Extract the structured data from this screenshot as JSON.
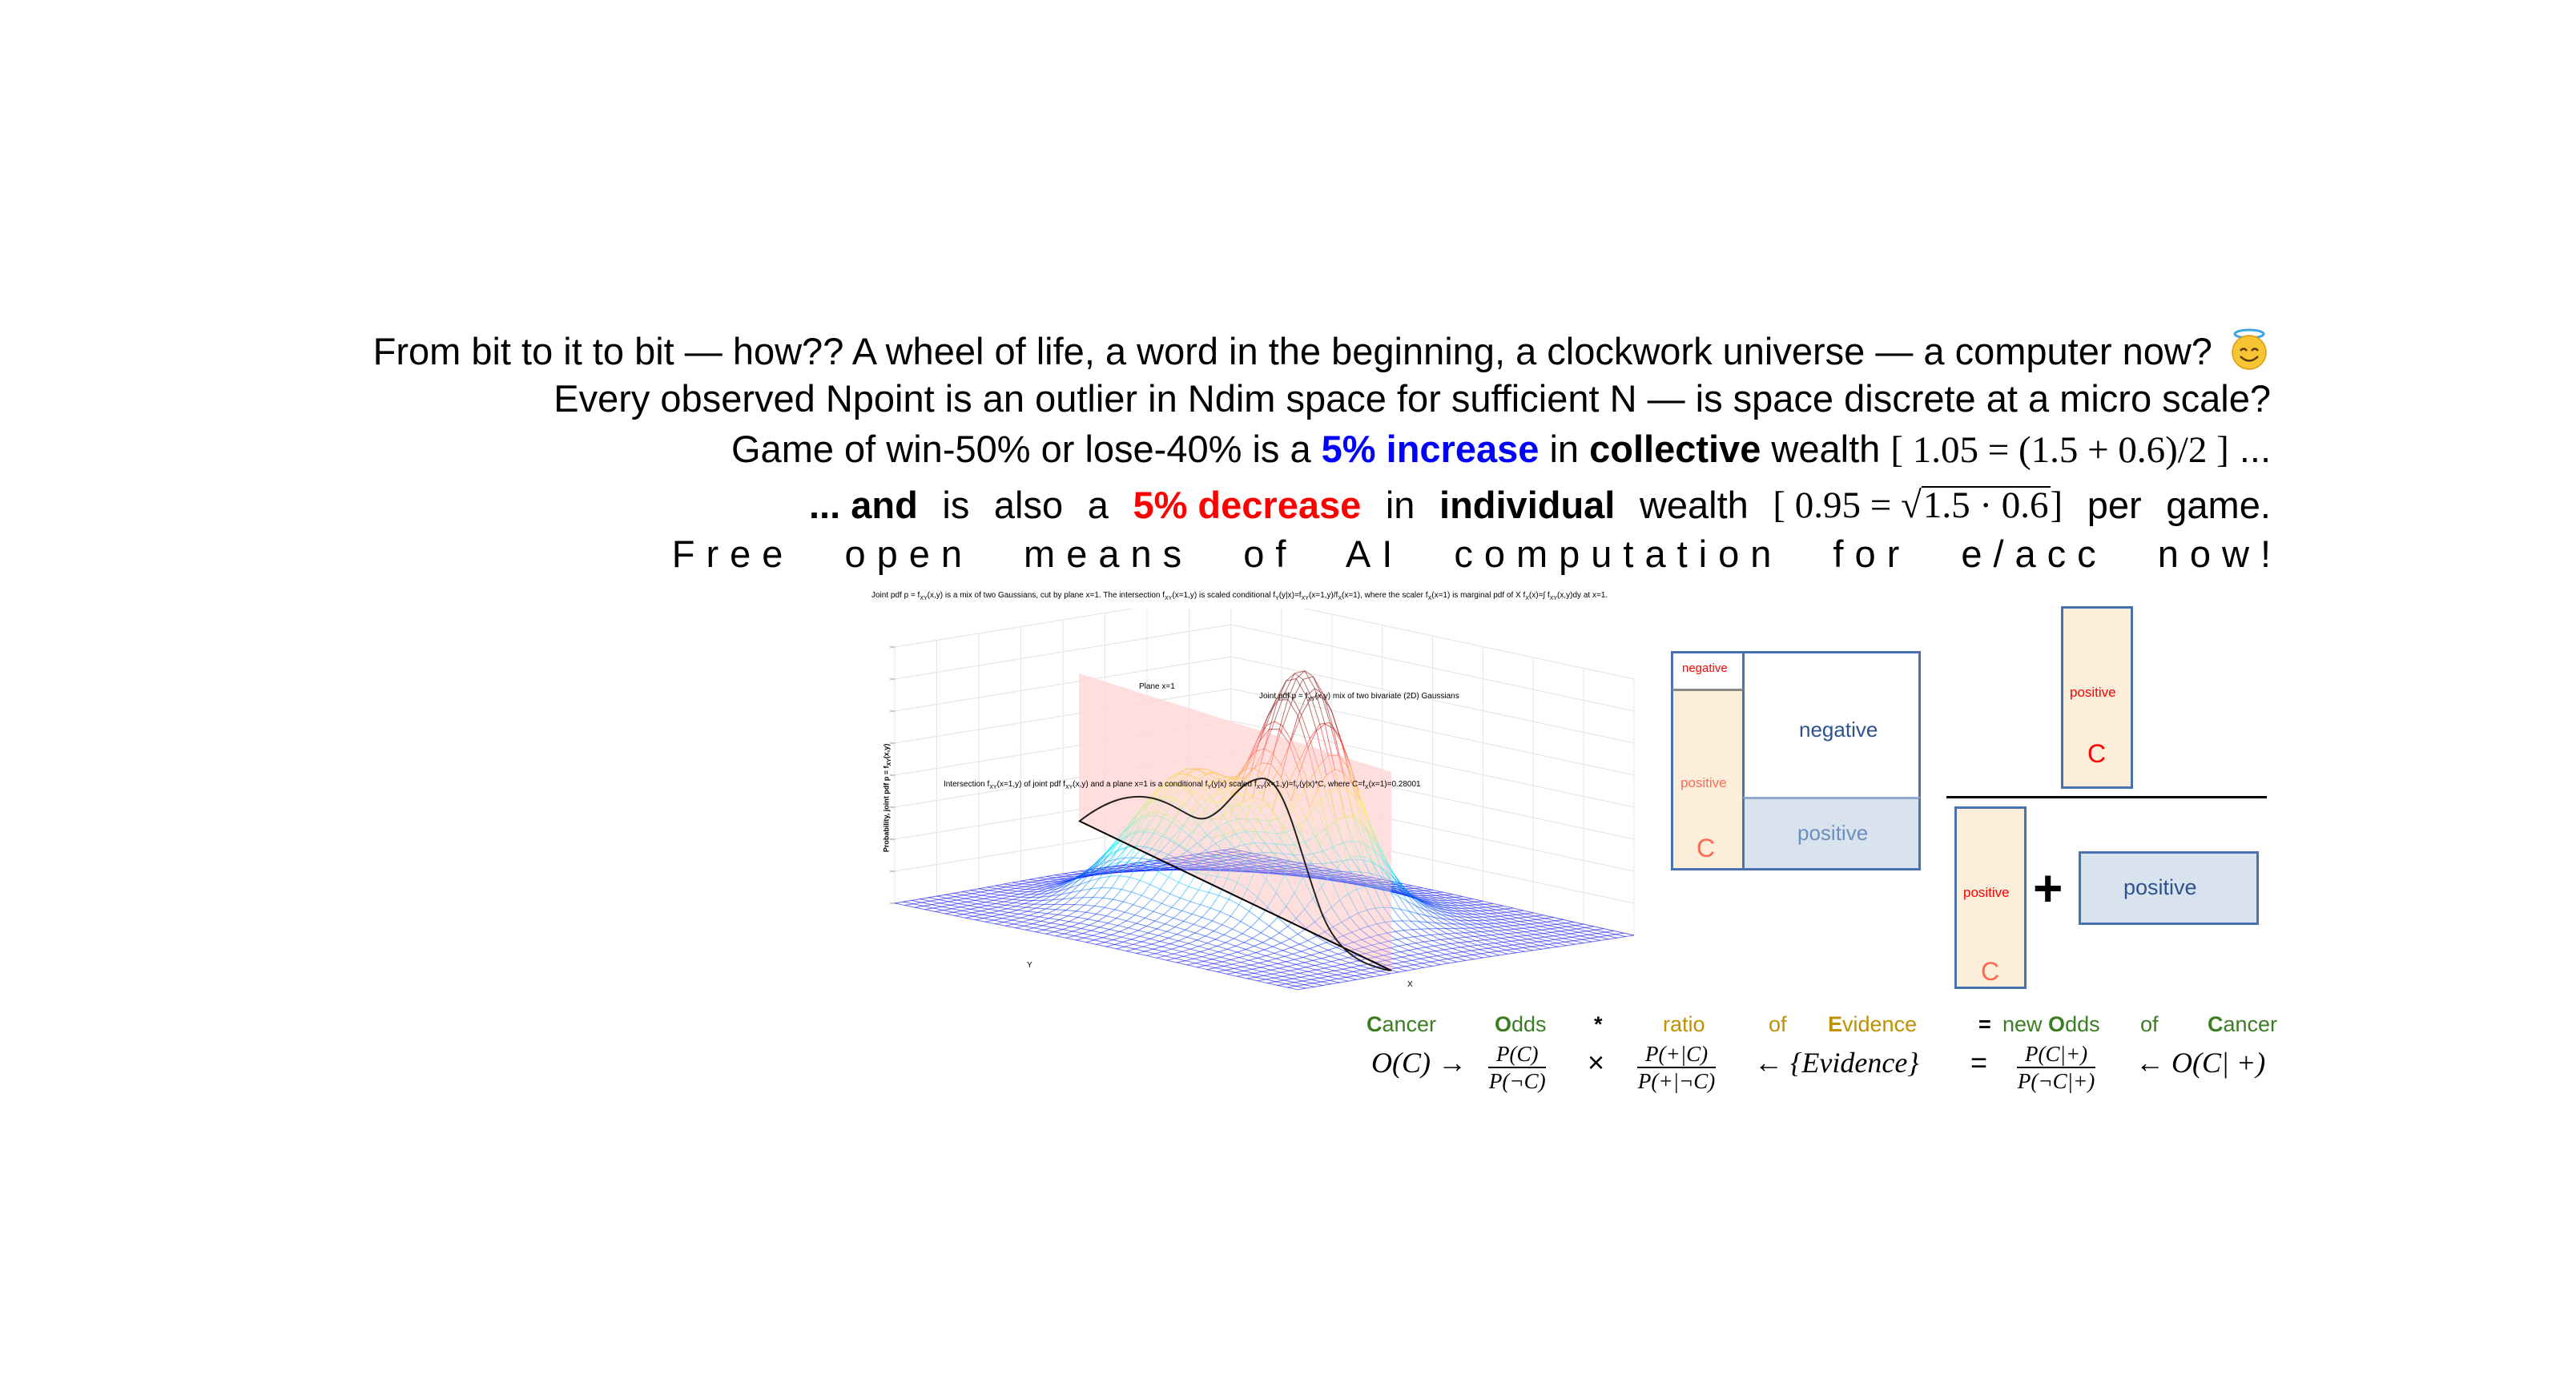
{
  "header": {
    "line1": "From bit to it to bit — how?? A wheel of life, a word in the beginning, a clockwork universe — a computer now?",
    "line1_icon": "smiling-face-with-halo-icon",
    "line2": "Every observed Npoint is an outlier in Ndim space for sufficient N — is space discrete at a micro scale?",
    "line3": {
      "pre": "Game of win-50% or lose-40% is a ",
      "highlight": "5% increase",
      "mid": " in ",
      "bold": "collective",
      "post": " wealth ",
      "math": "[ 1.05 = (1.5 + 0.6)/2 ]",
      "tail": " ..."
    },
    "line4": {
      "lead": "... and",
      "w1": "is",
      "w2": "also",
      "w3": "a",
      "highlight": "5% decrease",
      "w4": "in",
      "bold": "individual",
      "w5": "wealth",
      "math_pre": "[ 0.95 =",
      "math_root": "1.5 · 0.6",
      "math_post": "]",
      "w6": "per",
      "w7": "game."
    },
    "line5": "Free open means of AI computation for e/acc now!"
  },
  "colors": {
    "increase": "#0000ff",
    "decrease": "#ff0000",
    "green": "#3b7d23",
    "gold": "#bf9000",
    "box_border": "#4a72b0",
    "peach": "#fdeddb",
    "light_blue": "#d9e3ee",
    "plane": "#ffd6d6"
  },
  "plot": {
    "title": [
      {
        "t": "Joint pdf p = f"
      },
      {
        "s": "XY"
      },
      {
        "t": "(x,y) is a mix of two Gaussians, cut by plane x=1. The intersection f"
      },
      {
        "s": "XY"
      },
      {
        "t": "(x=1,y) is scaled conditional f"
      },
      {
        "s": "Y"
      },
      {
        "t": "(y|x)=f"
      },
      {
        "s": "XY"
      },
      {
        "t": "(x=1,y)/f"
      },
      {
        "s": "X"
      },
      {
        "t": "(x=1), where the scaler f"
      },
      {
        "s": "X"
      },
      {
        "t": "(x=1) is marginal pdf of X f"
      },
      {
        "s": "X"
      },
      {
        "t": "(x)=∫ f"
      },
      {
        "s": "XY"
      },
      {
        "t": "(x,y)dy at x=1."
      }
    ],
    "plane_label": [
      {
        "t": "Plane x=1"
      }
    ],
    "joint_label": [
      {
        "t": "Joint pdf p = f"
      },
      {
        "s": "XY"
      },
      {
        "t": "(x,y) mix of two bivariate (2D) Gaussians"
      }
    ],
    "intersection_label": [
      {
        "t": "Intersection f"
      },
      {
        "s": "XY"
      },
      {
        "t": "(x=1,y) of joint pdf f"
      },
      {
        "s": "XY"
      },
      {
        "t": "(x,y) and a plane x=1 is a conditional f"
      },
      {
        "s": "Y"
      },
      {
        "t": "(y|x) scaled f"
      },
      {
        "s": "XY"
      },
      {
        "t": "(x=1,y)=f"
      },
      {
        "s": "Y"
      },
      {
        "t": "(y|x)*C, where C=f"
      },
      {
        "s": "X"
      },
      {
        "t": "(x=1)=0.28001"
      }
    ],
    "zlabel": [
      {
        "t": "Probability, joint pdf p = f"
      },
      {
        "s": "XY"
      },
      {
        "t": "(x,y)"
      }
    ],
    "xlabel": "X",
    "ylabel": "Y",
    "constant_C": 0.28001
  },
  "diagram": {
    "left": {
      "c_negative": "negative",
      "c_positive": "positive",
      "c_letter": "C",
      "notc_negative": "negative",
      "notc_positive": "positive"
    },
    "fraction": {
      "num_positive": "positive",
      "num_letter": "C",
      "den_positive": "positive",
      "den_letter": "C",
      "plus": "+",
      "den_notc_positive": "positive"
    }
  },
  "formula_labels": [
    {
      "first": "C",
      "rest": "ancer",
      "color": "green"
    },
    {
      "first": "O",
      "rest": "dds",
      "color": "green"
    },
    {
      "first": "",
      "rest": "*",
      "color": "black"
    },
    {
      "first": "",
      "rest": "ratio",
      "color": "gold"
    },
    {
      "first": "",
      "rest": "of",
      "color": "gold"
    },
    {
      "first": "E",
      "rest": "vidence",
      "color": "gold"
    },
    {
      "first": "",
      "rest": "=",
      "color": "black"
    },
    {
      "first": "",
      "rest": "new ",
      "color": "green",
      "first2": "O",
      "rest2": "dds"
    },
    {
      "first": "",
      "rest": "of",
      "color": "green"
    },
    {
      "first": "C",
      "rest": "ancer",
      "color": "green"
    }
  ],
  "formula": {
    "prior": "O(C) →",
    "f1_num": "P(C)",
    "f1_den": "P(¬C)",
    "times": "×",
    "f2_num": "P(+|C)",
    "f2_den": "P(+|¬C)",
    "evidence": "← {Evidence}",
    "equals": "=",
    "f3_num": "P(C|+)",
    "f3_den": "P(¬C|+)",
    "posterior": "← O(C| +)"
  }
}
